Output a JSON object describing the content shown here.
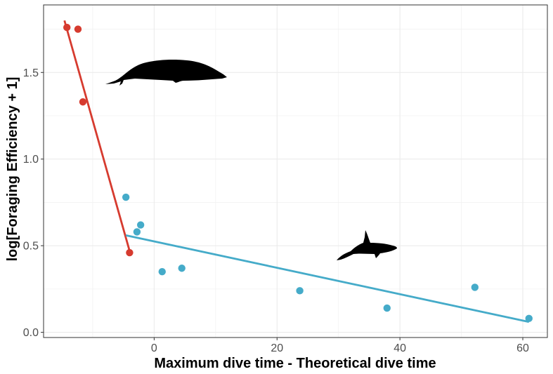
{
  "chart_data": {
    "type": "scatter",
    "title": "",
    "xlabel": "Maximum dive time - Theoretical dive time",
    "ylabel": "log[Foraging Efficiency + 1]",
    "xlim": [
      -18,
      64
    ],
    "ylim": [
      -0.03,
      1.89
    ],
    "x_ticks": [
      -20,
      0,
      20,
      40,
      60
    ],
    "x_tick_labels": [
      "",
      "0",
      "20",
      "40",
      "60"
    ],
    "y_ticks": [
      0.0,
      0.5,
      1.0,
      1.5
    ],
    "y_tick_labels": [
      "0.0",
      "0.5",
      "1.0",
      "1.5"
    ],
    "grid": true,
    "legend": "none",
    "series": [
      {
        "color": "#d63b2f",
        "points": [
          {
            "x": -14.2,
            "y": 1.76
          },
          {
            "x": -12.4,
            "y": 1.75
          },
          {
            "x": -11.6,
            "y": 1.33
          },
          {
            "x": -4.0,
            "y": 0.46
          }
        ],
        "fit": {
          "x": [
            -14.6,
            -4.0
          ],
          "y": [
            1.8,
            0.47
          ]
        }
      },
      {
        "color": "#45abc9",
        "points": [
          {
            "x": -4.6,
            "y": 0.78
          },
          {
            "x": -2.8,
            "y": 0.58
          },
          {
            "x": -2.2,
            "y": 0.62
          },
          {
            "x": 1.3,
            "y": 0.35
          },
          {
            "x": 4.5,
            "y": 0.37
          },
          {
            "x": 23.7,
            "y": 0.24
          },
          {
            "x": 37.9,
            "y": 0.14
          },
          {
            "x": 52.2,
            "y": 0.26
          },
          {
            "x": 61.0,
            "y": 0.08
          }
        ],
        "fit": {
          "x": [
            -4.6,
            61.0
          ],
          "y": [
            0.56,
            0.06
          ]
        }
      }
    ],
    "annotations": [
      {
        "icon": "whale-silhouette-icon",
        "near_series": 0
      },
      {
        "icon": "orca-silhouette-icon",
        "near_series": 1
      }
    ]
  }
}
